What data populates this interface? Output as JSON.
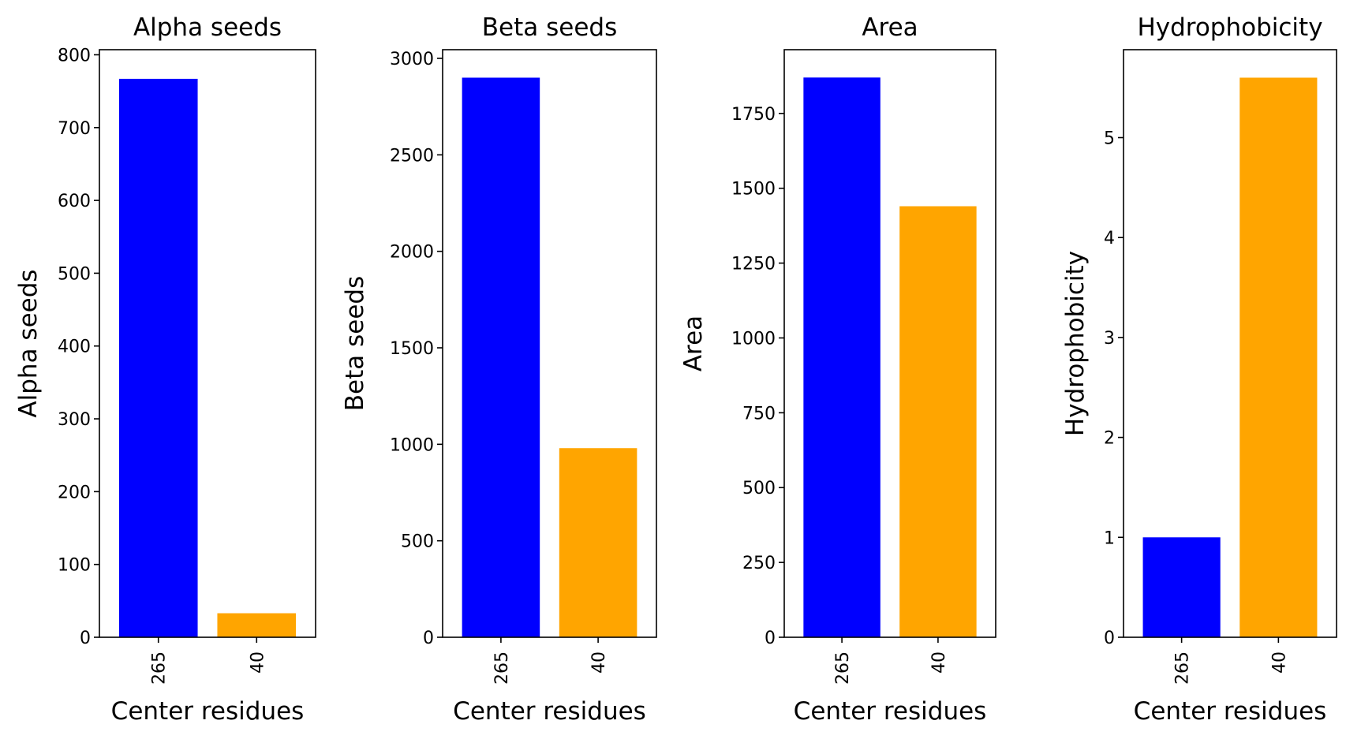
{
  "chart_data": [
    {
      "type": "bar",
      "title": "Alpha seeds",
      "xlabel": "Center residues",
      "ylabel": "Alpha seeds",
      "categories": [
        "265",
        "40"
      ],
      "values": [
        767,
        33
      ],
      "colors": [
        "#0000ff",
        "#ffa500"
      ],
      "ylim": [
        0,
        807
      ],
      "yticks": [
        0,
        100,
        200,
        300,
        400,
        500,
        600,
        700,
        800
      ]
    },
    {
      "type": "bar",
      "title": "Beta seeds",
      "xlabel": "Center residues",
      "ylabel": "Beta seeds",
      "categories": [
        "265",
        "40"
      ],
      "values": [
        2900,
        980
      ],
      "colors": [
        "#0000ff",
        "#ffa500"
      ],
      "ylim": [
        0,
        3045
      ],
      "yticks": [
        0,
        500,
        1000,
        1500,
        2000,
        2500,
        3000
      ]
    },
    {
      "type": "bar",
      "title": "Area",
      "xlabel": "Center residues",
      "ylabel": "Area",
      "categories": [
        "265",
        "40"
      ],
      "values": [
        1870,
        1440
      ],
      "colors": [
        "#0000ff",
        "#ffa500"
      ],
      "ylim": [
        0,
        1963
      ],
      "yticks": [
        0,
        250,
        500,
        750,
        1000,
        1250,
        1500,
        1750
      ]
    },
    {
      "type": "bar",
      "title": "Hydrophobicity",
      "xlabel": "Center residues",
      "ylabel": "Hydrophobicity",
      "categories": [
        "265",
        "40"
      ],
      "values": [
        1.0,
        5.6
      ],
      "colors": [
        "#0000ff",
        "#ffa500"
      ],
      "ylim": [
        0,
        5.88
      ],
      "yticks": [
        0,
        1,
        2,
        3,
        4,
        5
      ]
    }
  ]
}
